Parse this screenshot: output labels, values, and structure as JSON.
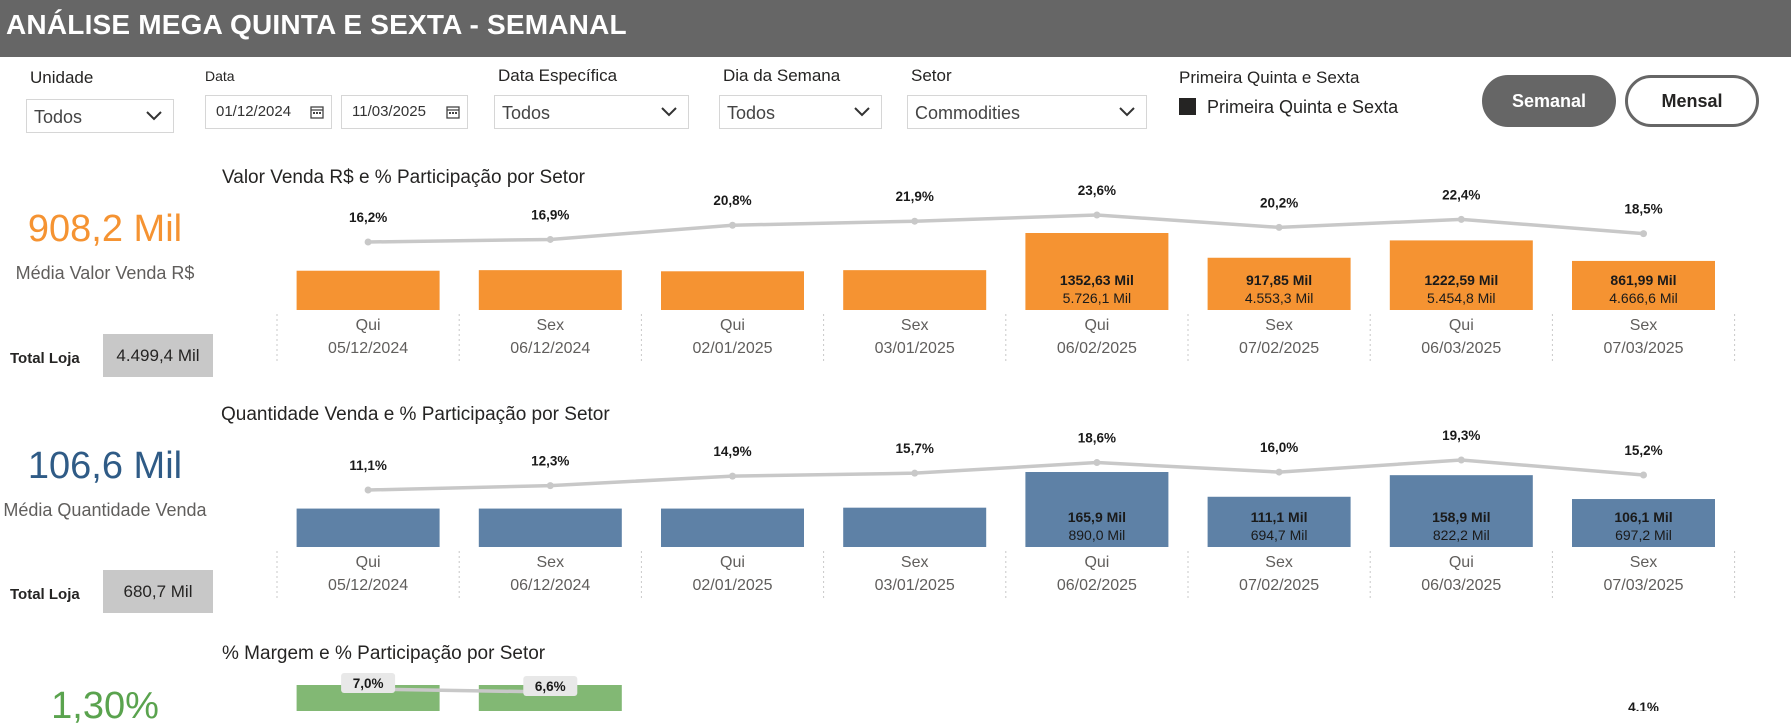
{
  "header": {
    "title": "ANÁLISE MEGA QUINTA E SEXTA - SEMANAL"
  },
  "filters": {
    "unidade": {
      "label": "Unidade",
      "value": "Todos"
    },
    "data": {
      "label": "Data",
      "start": "01/12/2024",
      "end": "11/03/2025"
    },
    "data_especifica": {
      "label": "Data Específica",
      "value": "Todos"
    },
    "dia_semana": {
      "label": "Dia da Semana",
      "value": "Todos"
    },
    "setor": {
      "label": "Setor",
      "value": "Commodities"
    },
    "primeira": {
      "label": "Primeira Quinta e Sexta",
      "option": "Primeira Quinta e Sexta",
      "checked": true
    }
  },
  "buttons": {
    "semanal": "Semanal",
    "mensal": "Mensal"
  },
  "kpis": {
    "valor": {
      "value": "908,2 Mil",
      "caption": "Média Valor Venda R$",
      "color": "#F59332",
      "total_label": "Total Loja",
      "total_value": "4.499,4 Mil"
    },
    "quantidade": {
      "value": "106,6 Mil",
      "caption": "Média Quantidade Venda",
      "color": "#2F5B86",
      "total_label": "Total Loja",
      "total_value": "680,7 Mil"
    },
    "margem": {
      "value": "1,30%",
      "color": "#5AA34E"
    }
  },
  "chart_data": [
    {
      "type": "bar",
      "title": "Valor Venda R$ e % Participação por Setor",
      "bar_color": "#F59332",
      "categories": [
        {
          "day": "Qui",
          "date": "05/12/2024"
        },
        {
          "day": "Sex",
          "date": "06/12/2024"
        },
        {
          "day": "Qui",
          "date": "02/01/2025"
        },
        {
          "day": "Sex",
          "date": "03/01/2025"
        },
        {
          "day": "Qui",
          "date": "06/02/2025"
        },
        {
          "day": "Sex",
          "date": "07/02/2025"
        },
        {
          "day": "Qui",
          "date": "06/03/2025"
        },
        {
          "day": "Sex",
          "date": "07/03/2025"
        }
      ],
      "series": [
        {
          "name": "Valor Venda Setor",
          "values": [
            690,
            700,
            680,
            700,
            1352.63,
            917.85,
            1222.59,
            861.99
          ],
          "labels": [
            "",
            "",
            "",
            "",
            "1352,63 Mil",
            "917,85 Mil",
            "1222,59 Mil",
            "861,99 Mil"
          ]
        },
        {
          "name": "Total Loja",
          "labels": [
            "",
            "",
            "",
            "",
            "5.726,1 Mil",
            "4.553,3 Mil",
            "5.454,8 Mil",
            "4.666,6 Mil"
          ]
        },
        {
          "name": "% Participação",
          "values": [
            16.2,
            16.9,
            20.8,
            21.9,
            23.6,
            20.2,
            22.4,
            18.5
          ],
          "labels": [
            "16,2%",
            "16,9%",
            "20,8%",
            "21,9%",
            "23,6%",
            "20,2%",
            "22,4%",
            "18,5%"
          ]
        }
      ]
    },
    {
      "type": "bar",
      "title": "Quantidade Venda e % Participação por Setor",
      "bar_color": "#5E81A6",
      "categories": [
        {
          "day": "Qui",
          "date": "05/12/2024"
        },
        {
          "day": "Sex",
          "date": "06/12/2024"
        },
        {
          "day": "Qui",
          "date": "02/01/2025"
        },
        {
          "day": "Sex",
          "date": "03/01/2025"
        },
        {
          "day": "Qui",
          "date": "06/02/2025"
        },
        {
          "day": "Sex",
          "date": "07/02/2025"
        },
        {
          "day": "Qui",
          "date": "06/03/2025"
        },
        {
          "day": "Sex",
          "date": "07/03/2025"
        }
      ],
      "series": [
        {
          "name": "Quantidade Venda Setor",
          "values": [
            85,
            85,
            85,
            87,
            165.9,
            111.1,
            158.9,
            106.1
          ],
          "labels": [
            "",
            "",
            "",
            "",
            "165,9 Mil",
            "111,1 Mil",
            "158,9 Mil",
            "106,1 Mil"
          ]
        },
        {
          "name": "Total Loja",
          "labels": [
            "",
            "",
            "",
            "",
            "890,0 Mil",
            "694,7 Mil",
            "822,2 Mil",
            "697,2 Mil"
          ]
        },
        {
          "name": "% Participação",
          "values": [
            11.1,
            12.3,
            14.9,
            15.7,
            18.6,
            16.0,
            19.3,
            15.2
          ],
          "labels": [
            "11,1%",
            "12,3%",
            "14,9%",
            "15,7%",
            "18,6%",
            "16,0%",
            "19,3%",
            "15,2%"
          ]
        }
      ]
    },
    {
      "type": "bar",
      "title": "% Margem e % Participação por Setor",
      "bar_color": "#82B874",
      "series": [
        {
          "name": "% Participação",
          "labels": [
            "7,0%",
            "6,6%",
            "4,1%"
          ]
        }
      ]
    }
  ]
}
